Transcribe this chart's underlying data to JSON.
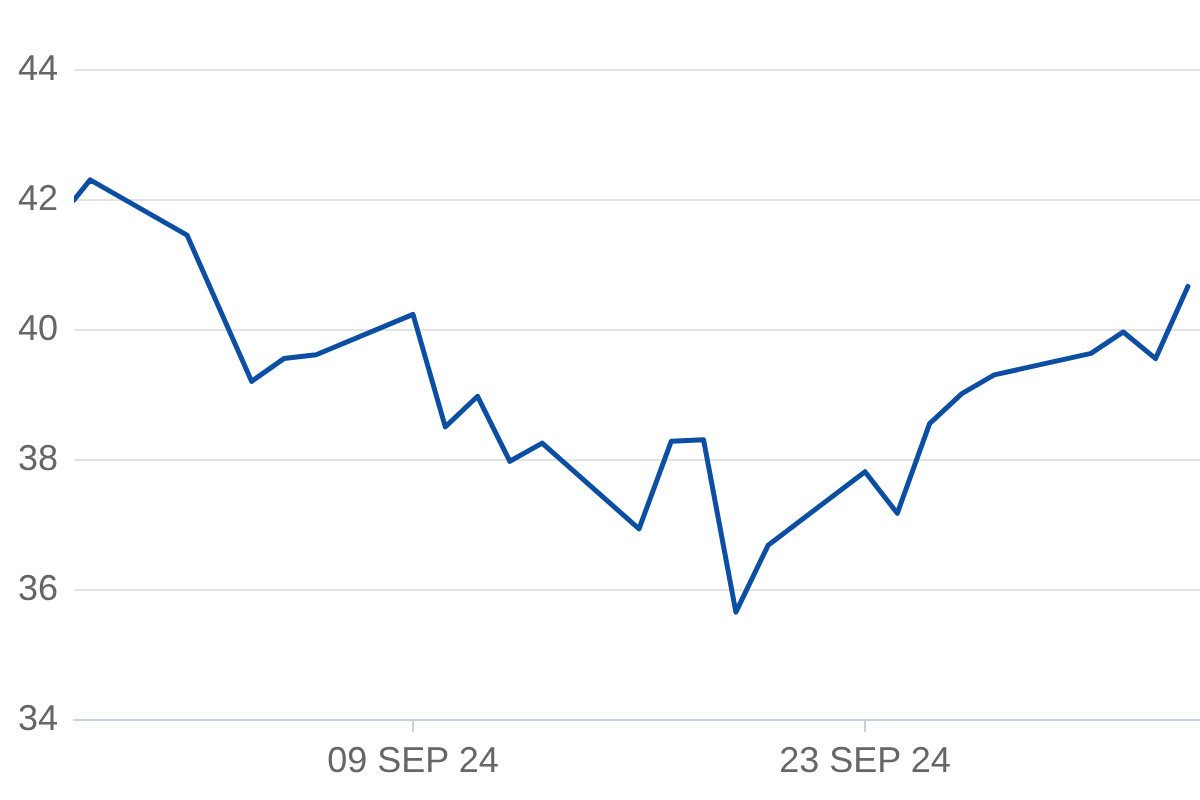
{
  "chart_data": {
    "type": "line",
    "x": [
      "--08-29T12:00",
      "--08-30",
      "--09-02",
      "--09-04",
      "--09-05",
      "--09-06",
      "--09-09",
      "--09-10",
      "--09-11",
      "--09-12",
      "--09-13",
      "--09-16",
      "--09-17",
      "--09-18",
      "--09-19",
      "--09-20",
      "--09-23",
      "--09-24",
      "--09-25",
      "--09-26",
      "--09-27",
      "--09-30",
      "--10-01",
      "--10-02",
      "--10-03"
    ],
    "values": [
      42.0,
      42.31,
      41.46,
      39.21,
      39.56,
      39.62,
      40.24,
      38.51,
      38.98,
      37.98,
      38.26,
      36.94,
      38.29,
      38.31,
      35.66,
      36.69,
      37.82,
      37.18,
      38.56,
      39.02,
      39.31,
      39.64,
      39.97,
      39.56,
      40.67
    ],
    "color": "#0b4ea2",
    "xlim": [
      "--08-29T12:00",
      "--10-03T09:00"
    ],
    "xticks": [
      {
        "value": "--09-09",
        "label": "09 SEP 24"
      },
      {
        "value": "--09-23",
        "label": "23 SEP 24"
      }
    ],
    "ylim": [
      34,
      44
    ],
    "yticks": [
      34,
      36,
      38,
      40,
      42,
      44
    ],
    "grid": "y"
  }
}
